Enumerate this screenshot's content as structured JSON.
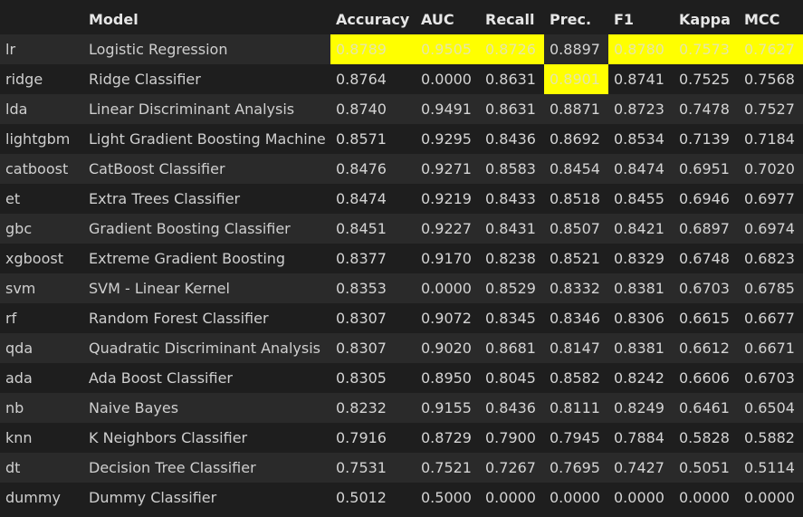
{
  "table": {
    "headers": [
      "",
      "Model",
      "Accuracy",
      "AUC",
      "Recall",
      "Prec.",
      "F1",
      "Kappa",
      "MCC"
    ],
    "rows": [
      {
        "id": "lr",
        "model": "Logistic Regression",
        "values": [
          "0.8789",
          "0.9505",
          "0.8726",
          "0.8897",
          "0.8780",
          "0.7573",
          "0.7627"
        ],
        "highlight": [
          true,
          true,
          true,
          false,
          true,
          true,
          true
        ]
      },
      {
        "id": "ridge",
        "model": "Ridge Classifier",
        "values": [
          "0.8764",
          "0.0000",
          "0.8631",
          "0.8901",
          "0.8741",
          "0.7525",
          "0.7568"
        ],
        "highlight": [
          false,
          false,
          false,
          true,
          false,
          false,
          false
        ]
      },
      {
        "id": "lda",
        "model": "Linear Discriminant Analysis",
        "values": [
          "0.8740",
          "0.9491",
          "0.8631",
          "0.8871",
          "0.8723",
          "0.7478",
          "0.7527"
        ],
        "highlight": [
          false,
          false,
          false,
          false,
          false,
          false,
          false
        ]
      },
      {
        "id": "lightgbm",
        "model": "Light Gradient Boosting Machine",
        "values": [
          "0.8571",
          "0.9295",
          "0.8436",
          "0.8692",
          "0.8534",
          "0.7139",
          "0.7184"
        ],
        "highlight": [
          false,
          false,
          false,
          false,
          false,
          false,
          false
        ]
      },
      {
        "id": "catboost",
        "model": "CatBoost Classifier",
        "values": [
          "0.8476",
          "0.9271",
          "0.8583",
          "0.8454",
          "0.8474",
          "0.6951",
          "0.7020"
        ],
        "highlight": [
          false,
          false,
          false,
          false,
          false,
          false,
          false
        ]
      },
      {
        "id": "et",
        "model": "Extra Trees Classifier",
        "values": [
          "0.8474",
          "0.9219",
          "0.8433",
          "0.8518",
          "0.8455",
          "0.6946",
          "0.6977"
        ],
        "highlight": [
          false,
          false,
          false,
          false,
          false,
          false,
          false
        ]
      },
      {
        "id": "gbc",
        "model": "Gradient Boosting Classifier",
        "values": [
          "0.8451",
          "0.9227",
          "0.8431",
          "0.8507",
          "0.8421",
          "0.6897",
          "0.6974"
        ],
        "highlight": [
          false,
          false,
          false,
          false,
          false,
          false,
          false
        ]
      },
      {
        "id": "xgboost",
        "model": "Extreme Gradient Boosting",
        "values": [
          "0.8377",
          "0.9170",
          "0.8238",
          "0.8521",
          "0.8329",
          "0.6748",
          "0.6823"
        ],
        "highlight": [
          false,
          false,
          false,
          false,
          false,
          false,
          false
        ]
      },
      {
        "id": "svm",
        "model": "SVM - Linear Kernel",
        "values": [
          "0.8353",
          "0.0000",
          "0.8529",
          "0.8332",
          "0.8381",
          "0.6703",
          "0.6785"
        ],
        "highlight": [
          false,
          false,
          false,
          false,
          false,
          false,
          false
        ]
      },
      {
        "id": "rf",
        "model": "Random Forest Classifier",
        "values": [
          "0.8307",
          "0.9072",
          "0.8345",
          "0.8346",
          "0.8306",
          "0.6615",
          "0.6677"
        ],
        "highlight": [
          false,
          false,
          false,
          false,
          false,
          false,
          false
        ]
      },
      {
        "id": "qda",
        "model": "Quadratic Discriminant Analysis",
        "values": [
          "0.8307",
          "0.9020",
          "0.8681",
          "0.8147",
          "0.8381",
          "0.6612",
          "0.6671"
        ],
        "highlight": [
          false,
          false,
          false,
          false,
          false,
          false,
          false
        ]
      },
      {
        "id": "ada",
        "model": "Ada Boost Classifier",
        "values": [
          "0.8305",
          "0.8950",
          "0.8045",
          "0.8582",
          "0.8242",
          "0.6606",
          "0.6703"
        ],
        "highlight": [
          false,
          false,
          false,
          false,
          false,
          false,
          false
        ]
      },
      {
        "id": "nb",
        "model": "Naive Bayes",
        "values": [
          "0.8232",
          "0.9155",
          "0.8436",
          "0.8111",
          "0.8249",
          "0.6461",
          "0.6504"
        ],
        "highlight": [
          false,
          false,
          false,
          false,
          false,
          false,
          false
        ]
      },
      {
        "id": "knn",
        "model": "K Neighbors Classifier",
        "values": [
          "0.7916",
          "0.8729",
          "0.7900",
          "0.7945",
          "0.7884",
          "0.5828",
          "0.5882"
        ],
        "highlight": [
          false,
          false,
          false,
          false,
          false,
          false,
          false
        ]
      },
      {
        "id": "dt",
        "model": "Decision Tree Classifier",
        "values": [
          "0.7531",
          "0.7521",
          "0.7267",
          "0.7695",
          "0.7427",
          "0.5051",
          "0.5114"
        ],
        "highlight": [
          false,
          false,
          false,
          false,
          false,
          false,
          false
        ]
      },
      {
        "id": "dummy",
        "model": "Dummy Classifier",
        "values": [
          "0.5012",
          "0.5000",
          "0.0000",
          "0.0000",
          "0.0000",
          "0.0000",
          "0.0000"
        ],
        "highlight": [
          false,
          false,
          false,
          false,
          false,
          false,
          false
        ]
      }
    ]
  },
  "colors": {
    "background": "#1e1e1e",
    "stripe": "#2a2a2a",
    "highlight": "#ffff00",
    "text": "#d4d4d4"
  }
}
